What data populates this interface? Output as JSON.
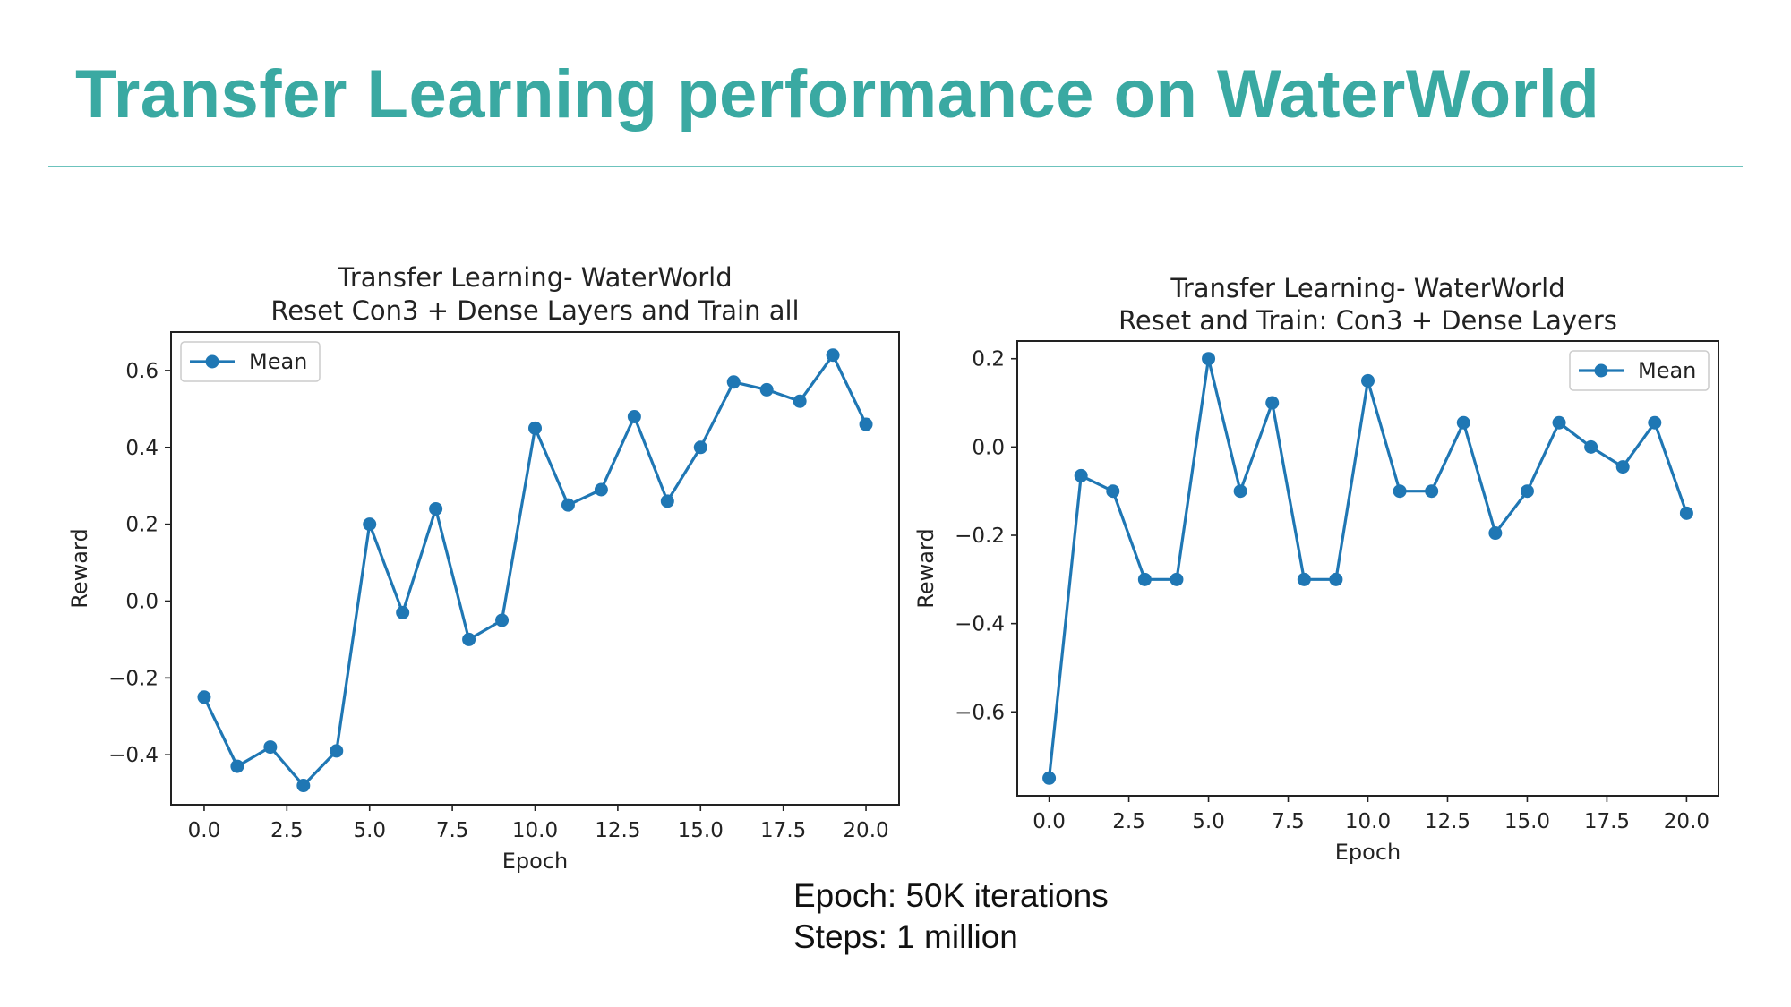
{
  "title": "Transfer Learning performance on WaterWorld",
  "notes": {
    "line1": "Epoch: 50K iterations",
    "line2": "Steps: 1 million"
  },
  "colors": {
    "title": "#3aa9a2",
    "series": "#1f77b4"
  },
  "chart_data": [
    {
      "type": "line",
      "title": "Transfer Learning- WaterWorld",
      "subtitle": "Reset Con3 + Dense Layers and Train all",
      "xlabel": "Epoch",
      "ylabel": "Reward",
      "xlim": [
        -1,
        21
      ],
      "ylim": [
        -0.53,
        0.7
      ],
      "xticks": [
        0.0,
        2.5,
        5.0,
        7.5,
        10.0,
        12.5,
        15.0,
        17.5,
        20.0
      ],
      "xtick_labels": [
        "0.0",
        "2.5",
        "5.0",
        "7.5",
        "10.0",
        "12.5",
        "15.0",
        "17.5",
        "20.0"
      ],
      "yticks": [
        -0.4,
        -0.2,
        0.0,
        0.2,
        0.4,
        0.6
      ],
      "ytick_labels": [
        "−0.4",
        "−0.2",
        "0.0",
        "0.2",
        "0.4",
        "0.6"
      ],
      "legend_position": "top-left",
      "grid": false,
      "series": [
        {
          "name": "Mean",
          "x": [
            0,
            1,
            2,
            3,
            4,
            5,
            6,
            7,
            8,
            9,
            10,
            11,
            12,
            13,
            14,
            15,
            16,
            17,
            18,
            19,
            20
          ],
          "values": [
            -0.25,
            -0.43,
            -0.38,
            -0.48,
            -0.39,
            0.2,
            -0.03,
            0.24,
            -0.1,
            -0.05,
            0.45,
            0.25,
            0.29,
            0.48,
            0.26,
            0.4,
            0.57,
            0.55,
            0.52,
            0.64,
            0.46
          ]
        }
      ]
    },
    {
      "type": "line",
      "title": "Transfer Learning- WaterWorld",
      "subtitle": "Reset and Train: Con3 + Dense Layers",
      "xlabel": "Epoch",
      "ylabel": "Reward",
      "xlim": [
        -1,
        21
      ],
      "ylim": [
        -0.79,
        0.24
      ],
      "xticks": [
        0.0,
        2.5,
        5.0,
        7.5,
        10.0,
        12.5,
        15.0,
        17.5,
        20.0
      ],
      "xtick_labels": [
        "0.0",
        "2.5",
        "5.0",
        "7.5",
        "10.0",
        "12.5",
        "15.0",
        "17.5",
        "20.0"
      ],
      "yticks": [
        -0.6,
        -0.4,
        -0.2,
        0.0,
        0.2
      ],
      "ytick_labels": [
        "−0.6",
        "−0.4",
        "−0.2",
        "0.0",
        "0.2"
      ],
      "legend_position": "top-right",
      "grid": false,
      "series": [
        {
          "name": "Mean",
          "x": [
            0,
            1,
            2,
            3,
            4,
            5,
            6,
            7,
            8,
            9,
            10,
            11,
            12,
            13,
            14,
            15,
            16,
            17,
            18,
            19,
            20
          ],
          "values": [
            -0.75,
            -0.065,
            -0.1,
            -0.3,
            -0.3,
            0.2,
            -0.1,
            0.1,
            -0.3,
            -0.3,
            0.15,
            -0.1,
            -0.1,
            0.055,
            -0.195,
            -0.1,
            0.055,
            0.0,
            -0.045,
            0.055,
            -0.15
          ]
        }
      ]
    }
  ]
}
